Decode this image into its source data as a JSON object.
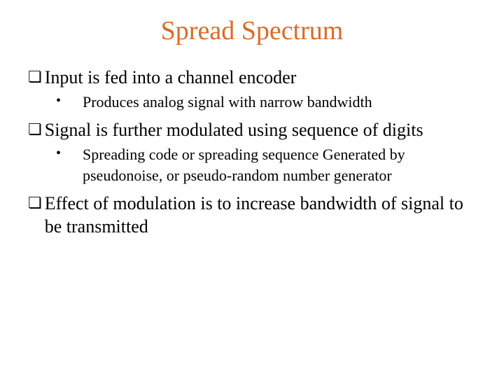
{
  "title": {
    "text": "Spread Spectrum",
    "color": "#d96b27"
  },
  "points": [
    {
      "text": "Input is fed into a channel encoder",
      "subs": [
        "Produces analog signal with narrow bandwidth"
      ]
    },
    {
      "text": "Signal is further modulated using sequence of digits",
      "subs": [
        "Spreading code or spreading sequence Generated by pseudonoise, or pseudo-random number generator"
      ]
    },
    {
      "text": "Effect of modulation is to increase bandwidth of signal to be transmitted",
      "subs": []
    }
  ],
  "markers": {
    "main": "❏",
    "sub": "•"
  }
}
